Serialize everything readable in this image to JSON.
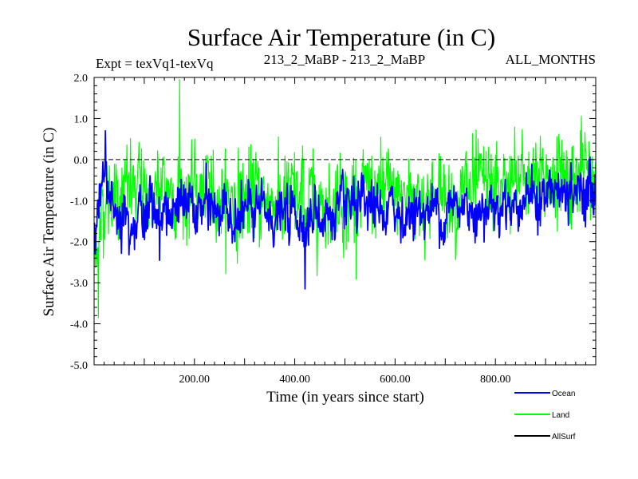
{
  "chart_data": {
    "type": "line",
    "title": "Surface Air Temperature (in C)",
    "subtitle_left": "Expt = texVq1-texVq",
    "subtitle_center": "213_2_MaBP - 213_2_MaBP",
    "subtitle_right": "ALL_MONTHS",
    "xlabel": "Time (in years since start)",
    "ylabel": "Surface Air Temperature (in C)",
    "xlim": [
      0,
      1000
    ],
    "ylim": [
      -5.0,
      2.0
    ],
    "x_ticks": [
      200,
      400,
      600,
      800
    ],
    "x_tick_labels": [
      "200.00",
      "400.00",
      "600.00",
      "800.00"
    ],
    "y_ticks": [
      -5.0,
      -4.0,
      -3.0,
      -2.0,
      -1.0,
      0.0,
      1.0,
      2.0
    ],
    "y_tick_labels": [
      "-5.0",
      "-4.0",
      "-3.0",
      "-2.0",
      "-1.0",
      "0.0",
      "1.0",
      "2.0"
    ],
    "zero_line": 0.0,
    "n_points": 1000,
    "series": [
      {
        "name": "Land",
        "color": "#00ff00",
        "anchor_x": [
          0,
          5,
          10,
          20,
          40,
          60,
          100,
          150,
          170,
          200,
          250,
          300,
          350,
          400,
          420,
          450,
          500,
          550,
          600,
          650,
          700,
          750,
          800,
          850,
          900,
          950,
          1000
        ],
        "mean": [
          -2.6,
          -2.2,
          -1.6,
          -1.0,
          -0.85,
          -0.8,
          -0.8,
          -0.8,
          -0.75,
          -0.8,
          -0.9,
          -0.95,
          -0.95,
          -1.0,
          -1.05,
          -0.95,
          -0.9,
          -0.9,
          -0.85,
          -0.85,
          -0.85,
          -0.8,
          -0.75,
          -0.55,
          -0.4,
          -0.35,
          -0.4
        ],
        "amplitude": 0.85,
        "min": -3.85,
        "max": 1.95,
        "max_at_x": 170,
        "min_at_x": 8
      },
      {
        "name": "Ocean",
        "color": "#0000ff",
        "anchor_x": [
          0,
          10,
          20,
          30,
          60,
          100,
          200,
          300,
          400,
          500,
          600,
          700,
          800,
          900,
          1000
        ],
        "mean": [
          -1.6,
          -0.9,
          -0.4,
          -1.0,
          -1.2,
          -1.25,
          -1.2,
          -1.3,
          -1.4,
          -1.35,
          -1.3,
          -1.2,
          -1.05,
          -0.9,
          -0.8
        ],
        "amplitude": 0.45,
        "min": -3.15,
        "max": 0.7,
        "max_at_x": 22,
        "min_at_x": 420
      },
      {
        "name": "AllSurf",
        "color": "#000000"
      }
    ]
  },
  "legend": {
    "items": [
      {
        "label": "Ocean",
        "color": "#0000ff"
      },
      {
        "label": "Land",
        "color": "#00ff00"
      },
      {
        "label": "AllSurf",
        "color": "#000000"
      }
    ]
  }
}
